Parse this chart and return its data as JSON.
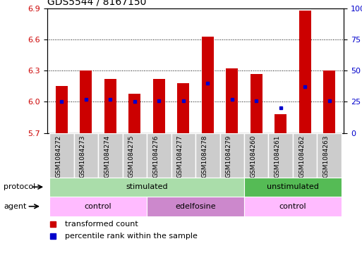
{
  "title": "GDS5544 / 8167150",
  "samples": [
    "GSM1084272",
    "GSM1084273",
    "GSM1084274",
    "GSM1084275",
    "GSM1084276",
    "GSM1084277",
    "GSM1084278",
    "GSM1084279",
    "GSM1084260",
    "GSM1084261",
    "GSM1084262",
    "GSM1084263"
  ],
  "transformed_count": [
    6.15,
    6.3,
    6.22,
    6.08,
    6.22,
    6.18,
    6.63,
    6.32,
    6.27,
    5.88,
    6.88,
    6.3
  ],
  "percentile_rank": [
    25,
    27,
    27,
    25,
    26,
    26,
    40,
    27,
    26,
    20,
    37,
    26
  ],
  "y_min": 5.7,
  "y_max": 6.9,
  "y_ticks_left": [
    5.7,
    6.0,
    6.3,
    6.6,
    6.9
  ],
  "y_ticks_right": [
    0,
    25,
    50,
    75,
    100
  ],
  "bar_color": "#cc0000",
  "dot_color": "#0000cc",
  "protocol_groups": [
    {
      "label": "stimulated",
      "start": 0,
      "end": 7,
      "color": "#aaddaa"
    },
    {
      "label": "unstimulated",
      "start": 8,
      "end": 11,
      "color": "#55bb55"
    }
  ],
  "agent_groups": [
    {
      "label": "control",
      "start": 0,
      "end": 3,
      "color": "#ffbbff"
    },
    {
      "label": "edelfosine",
      "start": 4,
      "end": 7,
      "color": "#cc88cc"
    },
    {
      "label": "control",
      "start": 8,
      "end": 11,
      "color": "#ffbbff"
    }
  ],
  "legend_bar_label": "transformed count",
  "legend_dot_label": "percentile rank within the sample",
  "background_color": "#ffffff",
  "protocol_label": "protocol",
  "agent_label": "agent",
  "sample_box_color": "#cccccc"
}
